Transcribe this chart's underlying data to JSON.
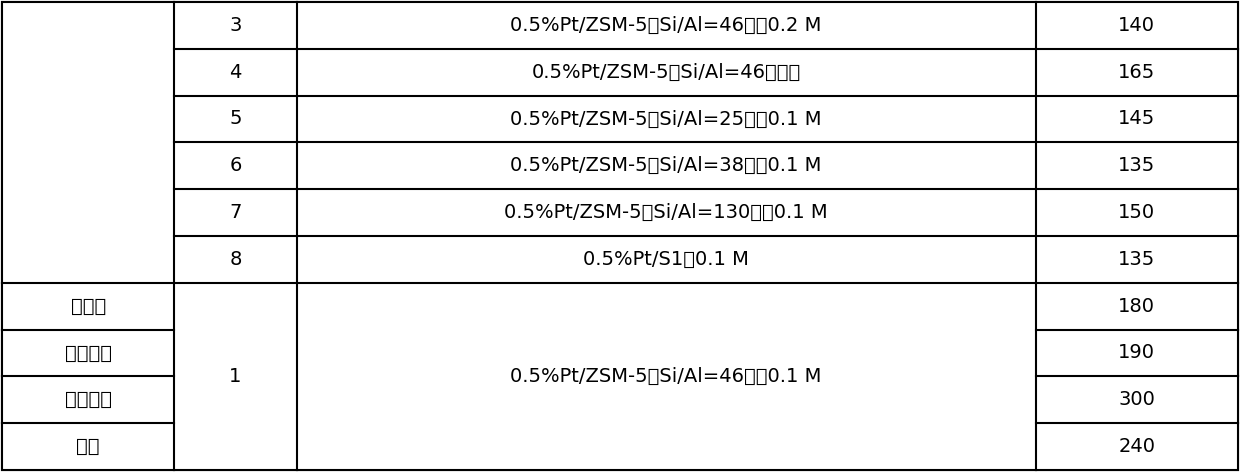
{
  "bg_color": "#ffffff",
  "border_color": "#000000",
  "text_color": "#000000",
  "font_size": 14,
  "top_rows": [
    {
      "col2": "3",
      "col3": "0.5%Pt/ZSM-5（Si/Al=46），0.2 M",
      "col4": "140"
    },
    {
      "col2": "4",
      "col3": "0.5%Pt/ZSM-5（Si/Al=46），无",
      "col4": "165"
    },
    {
      "col2": "5",
      "col3": "0.5%Pt/ZSM-5（Si/Al=25），0.1 M",
      "col4": "145"
    },
    {
      "col2": "6",
      "col3": "0.5%Pt/ZSM-5（Si/Al=38），0.1 M",
      "col4": "135"
    },
    {
      "col2": "7",
      "col3": "0.5%Pt/ZSM-5（Si/Al=130），0.1 M",
      "col4": "150"
    },
    {
      "col2": "8",
      "col3": "0.5%Pt/S1，0.1 M",
      "col4": "135"
    }
  ],
  "bottom_rows": [
    {
      "col1": "正己烷",
      "col4": "180"
    },
    {
      "col1": "乙酸乙酯",
      "col4": "190"
    },
    {
      "col1": "二氯乙烷",
      "col4": "300"
    },
    {
      "col1": "乙腥",
      "col4": "240"
    }
  ],
  "bottom_col2": "1",
  "bottom_col3": "0.5%Pt/ZSM-5（Si/Al=46），0.1 M"
}
